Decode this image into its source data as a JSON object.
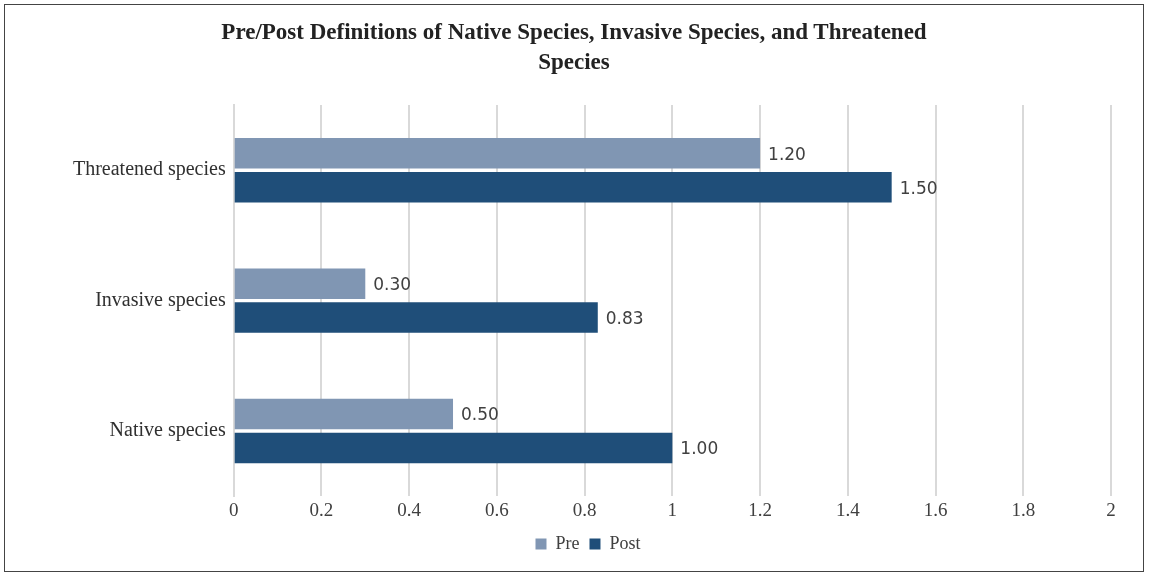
{
  "chart_data": {
    "type": "bar",
    "orientation": "horizontal",
    "title": "Pre/Post Definitions of Native Species, Invasive Species, and Threatened Species",
    "categories": [
      "Threatened species",
      "Invasive species",
      "Native species"
    ],
    "series": [
      {
        "name": "Pre",
        "color": "#8096b3",
        "values": [
          1.2,
          0.3,
          0.5
        ],
        "value_labels": [
          "1.20",
          "0.30",
          "0.50"
        ]
      },
      {
        "name": "Post",
        "color": "#1f4e79",
        "values": [
          1.5,
          0.83,
          1.0
        ],
        "value_labels": [
          "1.50",
          "0.83",
          "1.00"
        ]
      }
    ],
    "xlim": [
      0,
      2
    ],
    "xticks": [
      0,
      0.2,
      0.4,
      0.6,
      0.8,
      1,
      1.2,
      1.4,
      1.6,
      1.8,
      2
    ],
    "grid": "x",
    "legend": "bottom"
  }
}
